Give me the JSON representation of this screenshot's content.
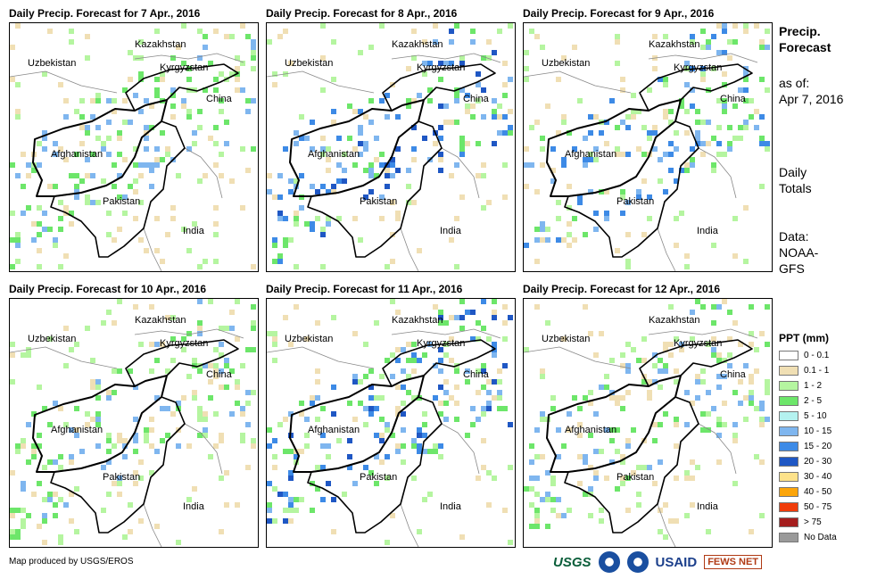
{
  "panels": [
    {
      "title": "Daily Precip. Forecast for 7 Apr., 2016",
      "dominant_classes": [
        "0.1 - 1",
        "1 - 2",
        "2 - 5",
        "10 - 15"
      ]
    },
    {
      "title": "Daily Precip. Forecast for 8 Apr., 2016",
      "dominant_classes": [
        "0.1 - 1",
        "1 - 2",
        "2 - 5",
        "10 - 15",
        "15 - 20",
        "20 - 30"
      ]
    },
    {
      "title": "Daily Precip. Forecast for 9 Apr., 2016",
      "dominant_classes": [
        "0.1 - 1",
        "1 - 2",
        "2 - 5",
        "10 - 15",
        "15 - 20"
      ]
    },
    {
      "title": "Daily Precip. Forecast for 10 Apr., 2016",
      "dominant_classes": [
        "0.1 - 1",
        "1 - 2",
        "2 - 5",
        "10 - 15"
      ]
    },
    {
      "title": "Daily Precip. Forecast for 11 Apr., 2016",
      "dominant_classes": [
        "0.1 - 1",
        "1 - 2",
        "2 - 5",
        "10 - 15",
        "15 - 20",
        "20 - 30"
      ]
    },
    {
      "title": "Daily Precip. Forecast for 12 Apr., 2016",
      "dominant_classes": [
        "0.1 - 1",
        "1 - 2",
        "2 - 5",
        "10 - 15"
      ]
    }
  ],
  "map_labels": {
    "kazakhstan": "Kazakhstan",
    "uzbekistan": "Uzbekistan",
    "kyrgyzstan": "Kyrgyzstan",
    "china": "China",
    "afghanistan": "Afghanistan",
    "pakistan": "Pakistan",
    "india": "India"
  },
  "side": {
    "title_line1": "Precip.",
    "title_line2": "Forecast",
    "asof_line1": "as of:",
    "asof_line2": "Apr 7, 2016",
    "totals_line1": "Daily",
    "totals_line2": "Totals",
    "data_line1": "Data:",
    "data_line2": "NOAA-",
    "data_line3": "GFS"
  },
  "legend": {
    "title": "PPT (mm)",
    "items": [
      {
        "label": "0 - 0.1",
        "color": "#ffffff"
      },
      {
        "label": "0.1 - 1",
        "color": "#f0dfb4"
      },
      {
        "label": "1 - 2",
        "color": "#b5f5a0"
      },
      {
        "label": "2 - 5",
        "color": "#6de66a"
      },
      {
        "label": "5 - 10",
        "color": "#b4f2f0"
      },
      {
        "label": "10 - 15",
        "color": "#7fb6ef"
      },
      {
        "label": "15 - 20",
        "color": "#3d8ae6"
      },
      {
        "label": "20 - 30",
        "color": "#1f57c4"
      },
      {
        "label": "30 - 40",
        "color": "#fde28a"
      },
      {
        "label": "40 - 50",
        "color": "#fca50a"
      },
      {
        "label": "50 - 75",
        "color": "#f03c0a"
      },
      {
        "label": "> 75",
        "color": "#a51e1e"
      },
      {
        "label": "No Data",
        "color": "#9a9a9a"
      }
    ]
  },
  "credit": "Map produced by USGS/EROS",
  "logos": {
    "usgs": "USGS",
    "usaid": "USAID",
    "fewsnet": "FEWS NET"
  }
}
